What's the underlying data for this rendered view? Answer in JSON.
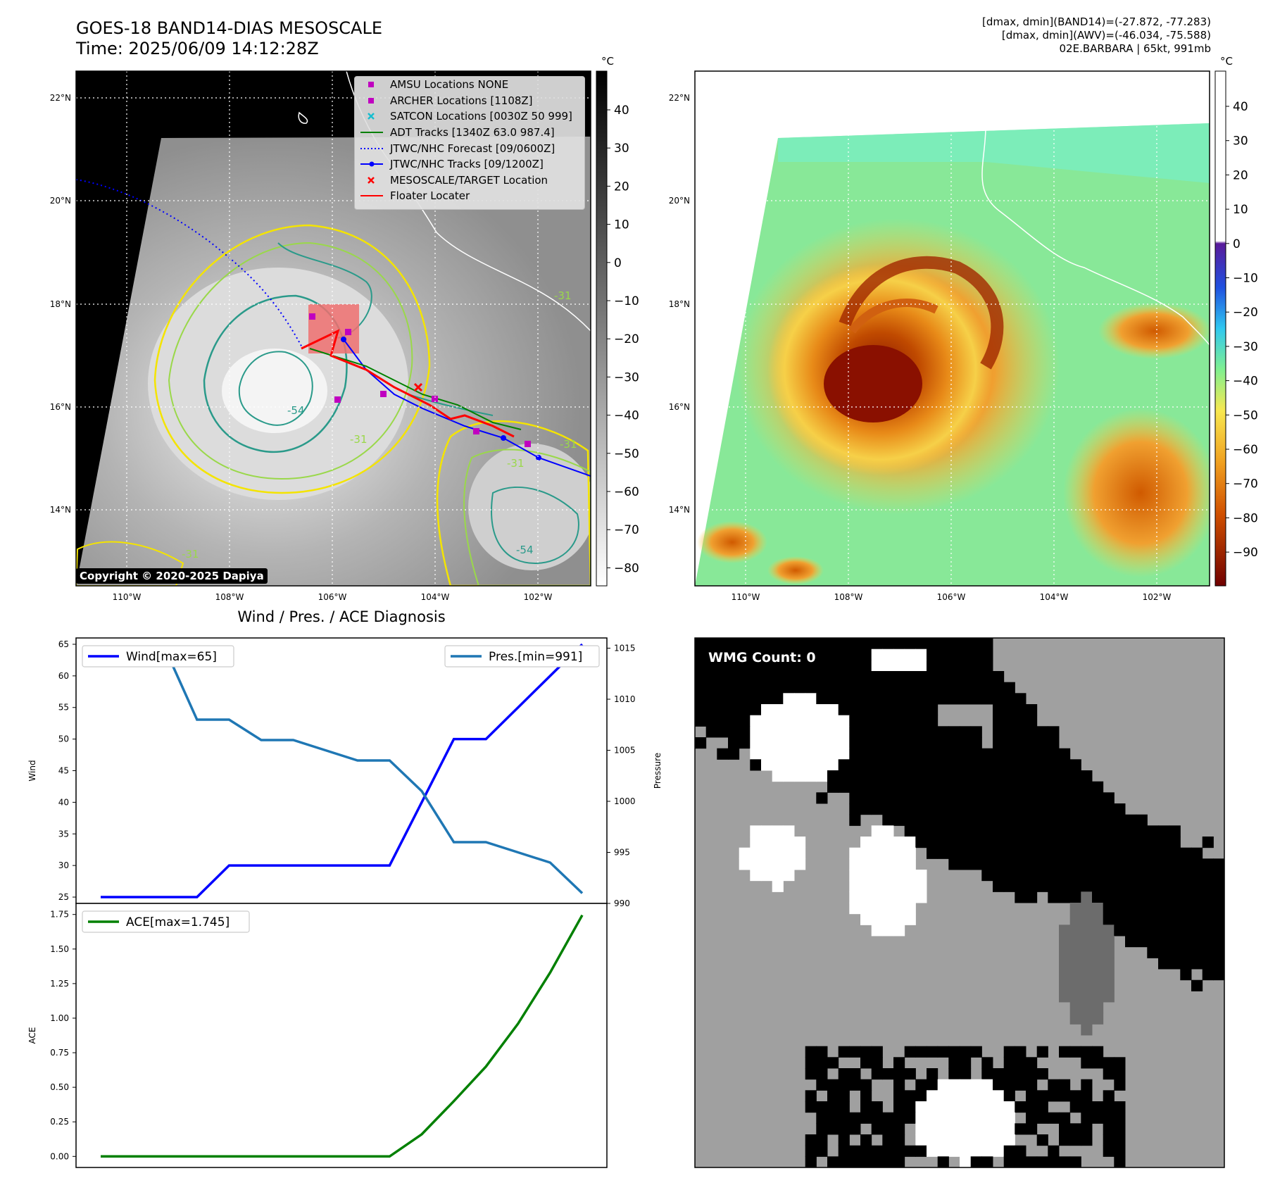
{
  "header": {
    "title_line1": "GOES-18 BAND14-DIAS MESOSCALE",
    "title_line2": "Time: 2025/06/09 14:12:28Z",
    "info_line1": "[dmax, dmin](BAND14)=(-27.872, -77.283)",
    "info_line2": "[dmax, dmin](AWV)=(-46.034, -75.588)",
    "info_line3": "02E.BARBARA | 65kt, 991mb"
  },
  "maps": {
    "lat_labels": [
      "22°N",
      "20°N",
      "18°N",
      "16°N",
      "14°N"
    ],
    "lon_labels": [
      "110°W",
      "108°W",
      "106°W",
      "104°W",
      "102°W"
    ],
    "copyright": "Copyright © 2020-2025 Dapiya",
    "contour_labels": [
      "-31",
      "-54",
      "-31",
      "-31",
      "-31",
      "-54",
      "-31"
    ],
    "legend": [
      {
        "label": "AMSU Locations NONE",
        "color": "#c000c0",
        "marker": "square"
      },
      {
        "label": "ARCHER Locations [1108Z]",
        "color": "#c000c0",
        "marker": "square"
      },
      {
        "label": "SATCON Locations [0030Z 50 999]",
        "color": "#17becf",
        "marker": "x"
      },
      {
        "label": "ADT Tracks [1340Z 63.0 987.4]",
        "color": "#008000",
        "marker": "line"
      },
      {
        "label": "JTWC/NHC Forecast [09/0600Z]",
        "color": "#0000ff",
        "marker": "dotted"
      },
      {
        "label": "JTWC/NHC Tracks [09/1200Z]",
        "color": "#0000ff",
        "marker": "line-dot"
      },
      {
        "label": "MESOSCALE/TARGET Location",
        "color": "#ff0000",
        "marker": "x"
      },
      {
        "label": "Floater Locater",
        "color": "#ff0000",
        "marker": "line"
      }
    ],
    "ir_colorbar": {
      "unit": "°C",
      "ticks": [
        "40",
        "30",
        "20",
        "10",
        "0",
        "−10",
        "−20",
        "−30",
        "−40",
        "−50",
        "−60",
        "−70",
        "−80"
      ]
    },
    "wv_colorbar": {
      "unit": "°C",
      "ticks": [
        "40",
        "30",
        "20",
        "10",
        "0",
        "−10",
        "−20",
        "−30",
        "−40",
        "−50",
        "−60",
        "−70",
        "−80",
        "−90"
      ]
    }
  },
  "wmg": {
    "label": "WMG Count: 0"
  },
  "chart_data": [
    {
      "type": "line",
      "title": "Wind / Pres. / ACE Diagnosis",
      "x": [
        0,
        1,
        2,
        3,
        4,
        5,
        6,
        7,
        8,
        9,
        10,
        11,
        12,
        13,
        14,
        15
      ],
      "series": [
        {
          "name": "Wind[max=65]",
          "axis": "left",
          "color": "#0000ff",
          "values": [
            25,
            25,
            25,
            25,
            30,
            30,
            30,
            30,
            30,
            30,
            40,
            50,
            50,
            55,
            60,
            65
          ]
        },
        {
          "name": "Pres.[min=991]",
          "axis": "right",
          "color": "#1f77b4",
          "values": [
            1015,
            1015,
            1015,
            1008,
            1008,
            1006,
            1006,
            1005,
            1004,
            1004,
            1001,
            996,
            996,
            995,
            994,
            991
          ]
        }
      ],
      "ylabel": "Wind",
      "y2label": "Pressure",
      "ylim": [
        24,
        66
      ],
      "y2lim": [
        990,
        1016
      ],
      "yticks": [
        25,
        30,
        35,
        40,
        45,
        50,
        55,
        60,
        65
      ],
      "y2ticks": [
        990,
        995,
        1000,
        1005,
        1010,
        1015
      ],
      "grid": false
    },
    {
      "type": "line",
      "x": [
        0,
        1,
        2,
        3,
        4,
        5,
        6,
        7,
        8,
        9,
        10,
        11,
        12,
        13,
        14,
        15
      ],
      "series": [
        {
          "name": "ACE[max=1.745]",
          "color": "#008000",
          "values": [
            0,
            0,
            0,
            0,
            0,
            0,
            0,
            0,
            0,
            0,
            0.16,
            0.4,
            0.65,
            0.96,
            1.33,
            1.745
          ]
        }
      ],
      "ylabel": "ACE",
      "ylim": [
        -0.08,
        1.83
      ],
      "yticks": [
        "0.00",
        "0.25",
        "0.50",
        "0.75",
        "1.00",
        "1.25",
        "1.50",
        "1.75"
      ],
      "grid": false
    }
  ]
}
